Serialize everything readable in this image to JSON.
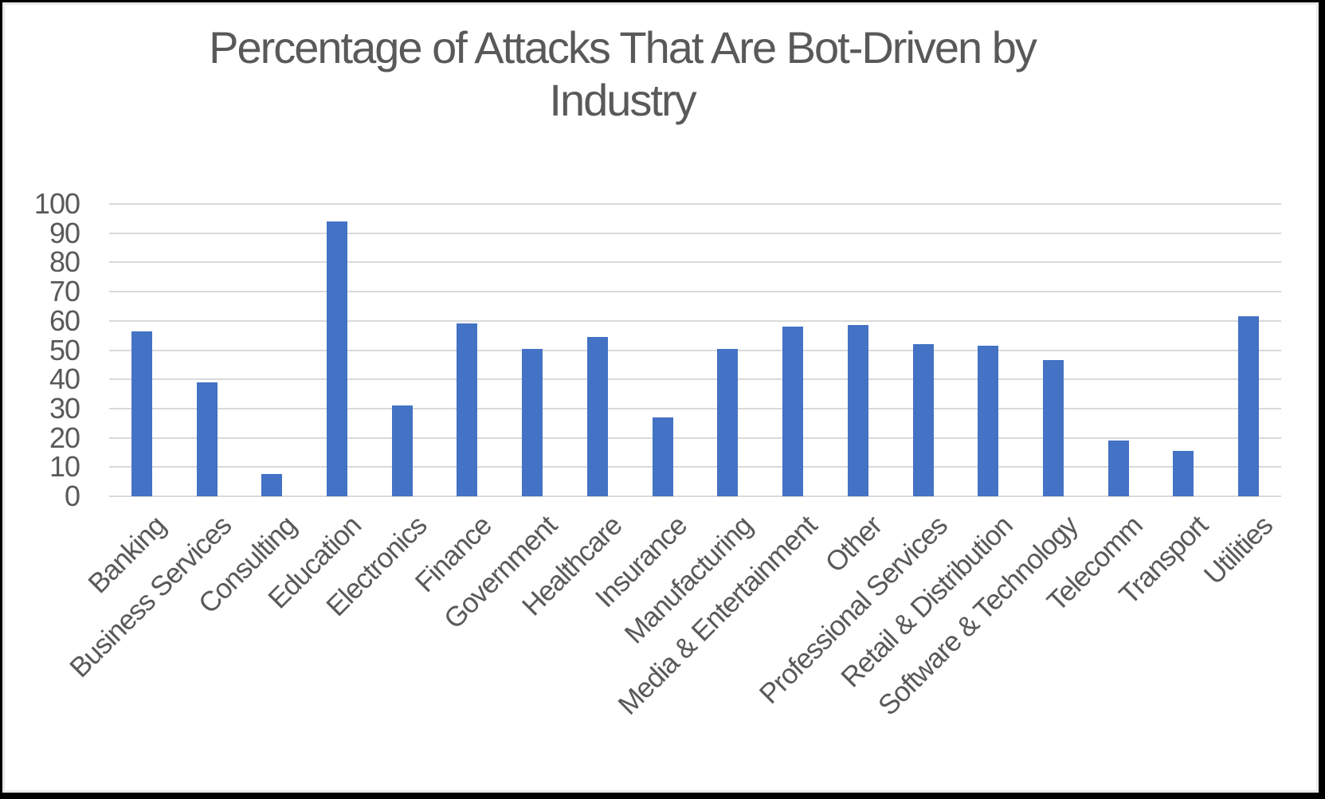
{
  "chart": {
    "title_lines": [
      "Percentage of Attacks That Are Bot-Driven by",
      "Industry"
    ]
  },
  "chart_data": {
    "type": "bar",
    "title": "Percentage of Attacks That Are Bot-Driven by Industry",
    "xlabel": "",
    "ylabel": "",
    "categories": [
      "Banking",
      "Business Services",
      "Consulting",
      "Education",
      "Electronics",
      "Finance",
      "Government",
      "Healthcare",
      "Insurance",
      "Manufacturing",
      "Media & Entertainment",
      "Other",
      "Professional Services",
      "Retail & Distribution",
      "Software & Technology",
      "Telecomm",
      "Transport",
      "Utilities"
    ],
    "values": [
      56.5,
      39,
      7.5,
      94,
      31,
      59,
      50.5,
      54.5,
      27,
      50.5,
      58,
      58.5,
      52,
      51.5,
      46.5,
      19,
      15.5,
      61.5
    ],
    "ylim": [
      0,
      100
    ],
    "yticks": [
      0,
      10,
      20,
      30,
      40,
      50,
      60,
      70,
      80,
      90,
      100
    ],
    "grid": true,
    "legend": "none",
    "bar_color": "#4472C4",
    "gridline_color": "#D9D9D9",
    "text_color": "#595959",
    "background_color": "#FFFFFF",
    "border_color": "#000000"
  }
}
